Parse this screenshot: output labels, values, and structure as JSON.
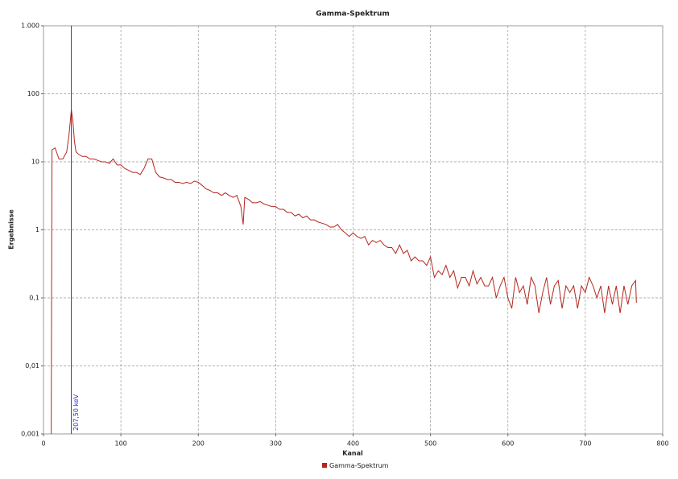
{
  "chart_data": {
    "type": "line",
    "title": "Gamma-Spektrum",
    "x_label": "Kanal",
    "y_label": "Ergebnisse",
    "log_y": true,
    "grid": true,
    "legend": "bottom",
    "xlim": [
      0,
      800
    ],
    "xticks": [
      0,
      100,
      200,
      300,
      400,
      500,
      600,
      700,
      800
    ],
    "ylim": [
      0.001,
      1000
    ],
    "yticks": [
      {
        "value": 0.001,
        "label": "0,001"
      },
      {
        "value": 0.01,
        "label": "0,01"
      },
      {
        "value": 0.1,
        "label": "0,1"
      },
      1,
      10,
      100,
      {
        "value": 1000,
        "label": "1.000"
      }
    ],
    "annotations": [
      {
        "x": 36,
        "label": "207,50 keV",
        "color": "#2a2ae0"
      }
    ],
    "x": [
      10,
      11,
      15,
      20,
      25,
      30,
      33,
      36,
      38,
      40,
      42,
      45,
      50,
      55,
      60,
      65,
      70,
      75,
      80,
      85,
      90,
      95,
      100,
      105,
      110,
      115,
      120,
      125,
      130,
      135,
      140,
      145,
      150,
      155,
      160,
      165,
      170,
      175,
      180,
      185,
      190,
      195,
      200,
      205,
      210,
      215,
      220,
      225,
      230,
      235,
      240,
      245,
      250,
      255,
      258,
      260,
      265,
      270,
      275,
      280,
      285,
      290,
      295,
      300,
      305,
      310,
      315,
      320,
      325,
      330,
      335,
      340,
      345,
      350,
      355,
      360,
      365,
      370,
      375,
      380,
      385,
      390,
      395,
      400,
      405,
      410,
      415,
      420,
      425,
      430,
      435,
      440,
      445,
      450,
      455,
      460,
      465,
      470,
      475,
      480,
      485,
      490,
      495,
      500,
      505,
      510,
      515,
      520,
      525,
      530,
      535,
      540,
      545,
      550,
      555,
      560,
      565,
      570,
      575,
      580,
      585,
      590,
      595,
      600,
      605,
      610,
      615,
      620,
      625,
      630,
      635,
      640,
      645,
      650,
      655,
      660,
      665,
      670,
      675,
      680,
      685,
      690,
      695,
      700,
      705,
      710,
      715,
      720,
      725,
      730,
      735,
      740,
      745,
      750,
      755,
      760,
      765,
      766
    ],
    "series": [
      {
        "name": "Gamma-Spektrum",
        "color": "#b5261e",
        "values": [
          0.001,
          15,
          16,
          11,
          11,
          14,
          25,
          58,
          40,
          20,
          14,
          13,
          12,
          12,
          11,
          11,
          10.5,
          10,
          10,
          9.5,
          11,
          9,
          9,
          8,
          7.5,
          7,
          7,
          6.5,
          8,
          11,
          11,
          7,
          6,
          5.8,
          5.5,
          5.5,
          5,
          5,
          4.8,
          5,
          4.8,
          5.2,
          5,
          4.5,
          4,
          3.8,
          3.5,
          3.5,
          3.2,
          3.5,
          3.2,
          3,
          3.2,
          2.2,
          1.2,
          3,
          2.8,
          2.5,
          2.5,
          2.6,
          2.4,
          2.3,
          2.2,
          2.2,
          2,
          2,
          1.8,
          1.8,
          1.6,
          1.7,
          1.5,
          1.6,
          1.4,
          1.4,
          1.3,
          1.25,
          1.2,
          1.1,
          1.1,
          1.2,
          1,
          0.9,
          0.8,
          0.9,
          0.8,
          0.75,
          0.8,
          0.6,
          0.7,
          0.65,
          0.7,
          0.6,
          0.55,
          0.55,
          0.45,
          0.6,
          0.45,
          0.5,
          0.35,
          0.4,
          0.35,
          0.35,
          0.3,
          0.4,
          0.2,
          0.25,
          0.22,
          0.3,
          0.2,
          0.25,
          0.14,
          0.2,
          0.2,
          0.15,
          0.25,
          0.16,
          0.2,
          0.15,
          0.15,
          0.2,
          0.1,
          0.15,
          0.2,
          0.1,
          0.07,
          0.2,
          0.12,
          0.15,
          0.08,
          0.2,
          0.15,
          0.06,
          0.12,
          0.2,
          0.08,
          0.15,
          0.18,
          0.07,
          0.15,
          0.12,
          0.15,
          0.07,
          0.15,
          0.12,
          0.2,
          0.15,
          0.1,
          0.15,
          0.06,
          0.15,
          0.08,
          0.15,
          0.06,
          0.15,
          0.08,
          0.15,
          0.18,
          0.085
        ]
      }
    ]
  }
}
